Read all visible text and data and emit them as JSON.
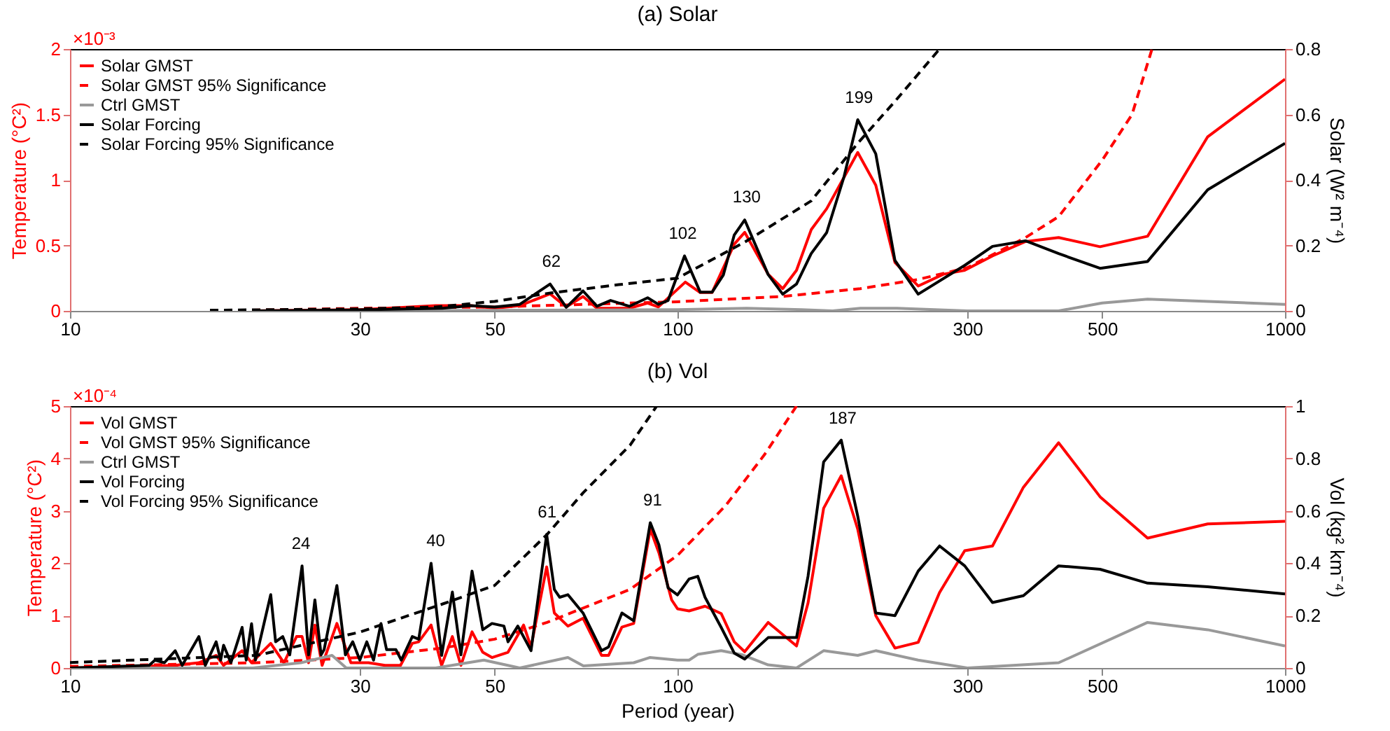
{
  "chart_data": [
    {
      "type": "line",
      "title": "(a) Solar",
      "ylabel": "Temperature (°C²)",
      "y2label": "Solar (W² m⁻⁴)",
      "log": "x",
      "legend": "top left",
      "xlim": [
        10,
        1000
      ],
      "xticks": [
        10,
        30,
        50,
        100,
        300,
        500,
        1000
      ],
      "ylim": [
        0,
        2
      ],
      "yticks": [
        0,
        0.5,
        1,
        1.5,
        2
      ],
      "y2lim": [
        0,
        0.8
      ],
      "y2ticks": [
        0,
        0.2,
        0.4,
        0.6,
        0.8
      ],
      "annotations": [
        "×10⁻³",
        {
          "text": "62",
          "x": 62,
          "y": 0.21
        },
        {
          "text": "102",
          "x": 102,
          "y": 0.42
        },
        {
          "text": "130",
          "x": 130,
          "y": 0.7
        },
        {
          "text": "199",
          "x": 199,
          "y": 1.46
        }
      ],
      "series": [
        {
          "name": "Solar GMST",
          "color": "#ff0000",
          "line_style": "solid",
          "x": [
            20,
            30,
            40,
            45.7,
            50,
            55,
            61.7,
            65.6,
            69.9,
            73.7,
            83.3,
            89.3,
            93,
            103,
            109,
            114,
            124,
            129,
            141,
            149,
            157,
            166,
            176,
            198,
            212,
            228,
            249,
            274,
            297,
            330,
            374,
            424,
            496,
            594,
            746,
            1000
          ],
          "values": [
            0,
            0.01,
            0.04,
            0.04,
            0.02,
            0.04,
            0.13,
            0.03,
            0.11,
            0.02,
            0.02,
            0.06,
            0.03,
            0.22,
            0.14,
            0.14,
            0.51,
            0.6,
            0.28,
            0.17,
            0.31,
            0.62,
            0.78,
            1.21,
            0.96,
            0.37,
            0.19,
            0.28,
            0.31,
            0.42,
            0.53,
            0.56,
            0.49,
            0.57,
            1.33,
            1.77
          ]
        },
        {
          "name": "Solar GMST 95% Significance",
          "color": "#ff0000",
          "line_style": "dashed",
          "x": [
            17,
            30,
            50,
            100,
            149,
            200,
            249,
            300,
            374,
            424,
            500,
            560,
            604
          ],
          "values": [
            0,
            0.02,
            0.03,
            0.07,
            0.11,
            0.17,
            0.24,
            0.33,
            0.56,
            0.72,
            1.15,
            1.5,
            2
          ]
        },
        {
          "name": "Ctrl GMST",
          "color": "#999999",
          "line_style": "solid",
          "x": [
            30,
            100,
            130,
            160,
            180,
            200,
            230,
            300,
            424,
            500,
            594,
            1000
          ],
          "values": [
            0,
            0.01,
            0.02,
            0.01,
            0,
            0.02,
            0.02,
            0,
            0,
            0.06,
            0.09,
            0.05
          ]
        },
        {
          "name": "Solar Forcing",
          "color": "#000000",
          "line_style": "solid",
          "axis": "y2",
          "x": [
            20,
            30,
            41,
            45.7,
            50,
            55,
            61.7,
            65.6,
            69.9,
            73.7,
            77.6,
            83.3,
            89.3,
            93,
            96.5,
            102.7,
            109,
            114,
            119,
            124,
            129,
            141,
            149,
            157,
            166,
            176,
            188,
            198,
            212,
            228,
            249,
            297,
            330,
            374,
            424,
            496,
            594,
            746,
            1000
          ],
          "values": [
            0,
            0.003,
            0.008,
            0.016,
            0.012,
            0.02,
            0.082,
            0.011,
            0.061,
            0.014,
            0.032,
            0.014,
            0.04,
            0.02,
            0.032,
            0.168,
            0.057,
            0.057,
            0.11,
            0.232,
            0.278,
            0.111,
            0.051,
            0.082,
            0.175,
            0.239,
            0.41,
            0.584,
            0.48,
            0.154,
            0.051,
            0.139,
            0.197,
            0.214,
            0.175,
            0.13,
            0.151,
            0.37,
            0.512
          ]
        },
        {
          "name": "Solar Forcing 95% Significance",
          "color": "#000000",
          "line_style": "dashed",
          "axis": "y2",
          "x": [
            17,
            30,
            40,
            50,
            62,
            80,
            100,
            129,
            166,
            198,
            228,
            270
          ],
          "values": [
            0.002,
            0.006,
            0.012,
            0.029,
            0.055,
            0.08,
            0.1,
            0.21,
            0.336,
            0.512,
            0.64,
            0.8
          ]
        }
      ]
    },
    {
      "type": "line",
      "title": "(b) Vol",
      "xlabel": "Period (year)",
      "ylabel": "Temperature (°C²)",
      "y2label": "Vol (kg² km⁻⁴)",
      "log": "x",
      "legend": "top left",
      "xlim": [
        10,
        1000
      ],
      "xticks": [
        10,
        30,
        50,
        100,
        300,
        500,
        1000
      ],
      "ylim": [
        0,
        5
      ],
      "yticks": [
        0,
        1,
        2,
        3,
        4,
        5
      ],
      "y2lim": [
        0,
        1
      ],
      "y2ticks": [
        0,
        0.2,
        0.4,
        0.6,
        0.8,
        1
      ],
      "annotations": [
        "×10⁻⁴",
        {
          "text": "24",
          "x": 24,
          "y": 1.95
        },
        {
          "text": "40",
          "x": 40,
          "y": 2
        },
        {
          "text": "61",
          "x": 61,
          "y": 2.55
        },
        {
          "text": "91",
          "x": 91,
          "y": 2.78
        },
        {
          "text": "187",
          "x": 187,
          "y": 4.35
        }
      ],
      "series": [
        {
          "name": "Vol GMST",
          "color": "#ff0000",
          "line_style": "solid",
          "x": [
            10,
            14.9,
            16.3,
            17.4,
            17.9,
            19.2,
            19.9,
            21.4,
            22.5,
            23.6,
            24.1,
            24.7,
            25.3,
            26,
            27.5,
            29,
            31,
            33,
            35,
            36.6,
            37.5,
            39.3,
            40.9,
            42.6,
            44,
            45.9,
            47.8,
            49.5,
            52.6,
            55.8,
            57.4,
            60.9,
            62.7,
            66,
            69.9,
            75,
            77,
            81,
            84.7,
            90.2,
            93.2,
            97.8,
            100,
            104.5,
            111,
            118,
            124,
            129,
            141,
            157,
            164,
            174,
            186,
            198,
            212,
            228,
            249,
            270,
            297,
            330,
            371,
            424,
            496,
            594,
            746,
            1000
          ],
          "values": [
            0,
            0.05,
            0.1,
            0.24,
            0.05,
            0.33,
            0.1,
            0.47,
            0.1,
            0.6,
            0.6,
            0.1,
            0.82,
            0.05,
            0.85,
            0.1,
            0.1,
            0.05,
            0.05,
            0.47,
            0.5,
            0.82,
            0.05,
            0.6,
            0.05,
            0.69,
            0.3,
            0.2,
            0.3,
            0.82,
            0.4,
            1.93,
            1.05,
            0.8,
            0.95,
            0.24,
            0.24,
            0.78,
            0.85,
            2.65,
            2.2,
            1.3,
            1.13,
            1.09,
            1.18,
            1.04,
            0.5,
            0.31,
            0.87,
            0.42,
            1.24,
            3.05,
            3.67,
            2.65,
            1,
            0.38,
            0.49,
            1.44,
            2.24,
            2.33,
            3.45,
            4.3,
            3.27,
            2.48,
            2.75,
            2.8
          ]
        },
        {
          "name": "Vol GMST 95% Significance",
          "color": "#ff0000",
          "line_style": "dashed",
          "x": [
            10,
            20.3,
            30,
            41,
            50,
            61,
            83.5,
            100,
            120,
            139,
            157
          ],
          "values": [
            0.03,
            0.1,
            0.2,
            0.38,
            0.55,
            0.87,
            1.5,
            2.15,
            3.1,
            4.07,
            5
          ]
        },
        {
          "name": "Ctrl GMST",
          "color": "#999999",
          "line_style": "solid",
          "x": [
            10,
            20,
            24,
            27,
            28.5,
            40,
            48,
            55,
            66,
            70,
            84.7,
            90,
            100,
            104.5,
            108,
            118,
            128,
            141,
            157,
            174,
            198,
            212,
            249,
            300,
            424,
            594,
            746,
            1000
          ],
          "values": [
            0,
            0,
            0.1,
            0.24,
            0,
            0,
            0.15,
            0,
            0.2,
            0.04,
            0.1,
            0.2,
            0.15,
            0.15,
            0.26,
            0.33,
            0.25,
            0.06,
            0,
            0.33,
            0.24,
            0.33,
            0.15,
            0,
            0.1,
            0.87,
            0.73,
            0.42
          ]
        },
        {
          "name": "Vol Forcing",
          "color": "#000000",
          "line_style": "solid",
          "axis": "y2",
          "x": [
            10,
            13.5,
            13.8,
            14.3,
            14.9,
            15.3,
            16.3,
            16.7,
            17.4,
            17.7,
            17.9,
            18.4,
            19.2,
            19.5,
            19.9,
            20.2,
            21.4,
            21.8,
            22.4,
            23,
            24.1,
            24.7,
            25.3,
            25.9,
            26.2,
            27.5,
            28.4,
            29.2,
            30,
            30.8,
            31.6,
            32.5,
            33.2,
            34.4,
            35.1,
            36.6,
            37.5,
            39.3,
            40.9,
            42.6,
            44,
            45.9,
            47.8,
            49.5,
            51.8,
            52.6,
            54.6,
            57.4,
            60.9,
            62.7,
            64,
            66,
            69.9,
            75,
            77,
            81,
            84.7,
            90.2,
            93.2,
            96.5,
            100,
            104.5,
            108,
            111,
            118,
            124,
            129,
            141,
            157,
            164,
            174,
            186,
            198,
            212,
            228,
            249,
            270,
            297,
            330,
            371,
            424,
            496,
            594,
            746,
            1000
          ],
          "values": [
            0,
            0.01,
            0.03,
            0.02,
            0.066,
            0.01,
            0.12,
            0.01,
            0.1,
            0.03,
            0.087,
            0.02,
            0.155,
            0.03,
            0.169,
            0.03,
            0.28,
            0.1,
            0.12,
            0.05,
            0.39,
            0.05,
            0.26,
            0.05,
            0.07,
            0.315,
            0.05,
            0.1,
            0.03,
            0.1,
            0.03,
            0.17,
            0.07,
            0.07,
            0.03,
            0.12,
            0.11,
            0.4,
            0.048,
            0.29,
            0.05,
            0.37,
            0.146,
            0.17,
            0.16,
            0.1,
            0.16,
            0.066,
            0.51,
            0.3,
            0.27,
            0.28,
            0.21,
            0.066,
            0.08,
            0.21,
            0.18,
            0.555,
            0.47,
            0.306,
            0.279,
            0.34,
            0.35,
            0.27,
            0.155,
            0.057,
            0.034,
            0.116,
            0.116,
            0.35,
            0.787,
            0.87,
            0.58,
            0.21,
            0.2,
            0.37,
            0.466,
            0.39,
            0.25,
            0.276,
            0.39,
            0.377,
            0.324,
            0.31,
            0.283
          ]
        },
        {
          "name": "Vol Forcing 95% Significance",
          "color": "#000000",
          "line_style": "dashed",
          "axis": "y2",
          "x": [
            10,
            20.3,
            30,
            41,
            50,
            61,
            70,
            83.5,
            92.4
          ],
          "values": [
            0.021,
            0.048,
            0.137,
            0.244,
            0.315,
            0.51,
            0.67,
            0.85,
            1.0
          ]
        }
      ]
    }
  ]
}
